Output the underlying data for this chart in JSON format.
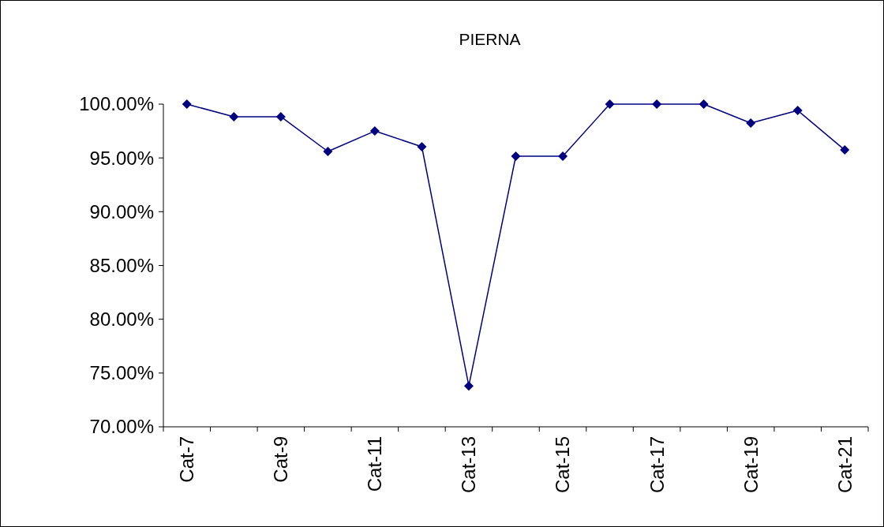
{
  "chart_data": {
    "type": "line",
    "title": "PIERNA",
    "categories": [
      "Cat-7",
      null,
      "Cat-9",
      null,
      "Cat-11",
      null,
      "Cat-13",
      null,
      "Cat-15",
      null,
      "Cat-17",
      null,
      "Cat-19",
      null,
      "Cat-21"
    ],
    "series": [
      {
        "color": "#000080",
        "values": [
          100,
          98.83,
          98.83,
          95.6,
          97.5,
          96.04,
          73.8,
          95.16,
          95.16,
          100,
          100,
          100,
          98.24,
          99.41,
          95.74
        ]
      }
    ],
    "ylim": [
      70,
      100
    ],
    "yticks": [
      {
        "value": 70,
        "label": "70.00%"
      },
      {
        "value": 75,
        "label": "75.00%"
      },
      {
        "value": 80,
        "label": "80.00%"
      },
      {
        "value": 85,
        "label": "85.00%"
      },
      {
        "value": 90,
        "label": "90.00%"
      },
      {
        "value": 95,
        "label": "95.00%"
      },
      {
        "value": 100,
        "label": "100.00%"
      }
    ],
    "grid": false,
    "marker": "diamond",
    "line_style": "solid"
  }
}
